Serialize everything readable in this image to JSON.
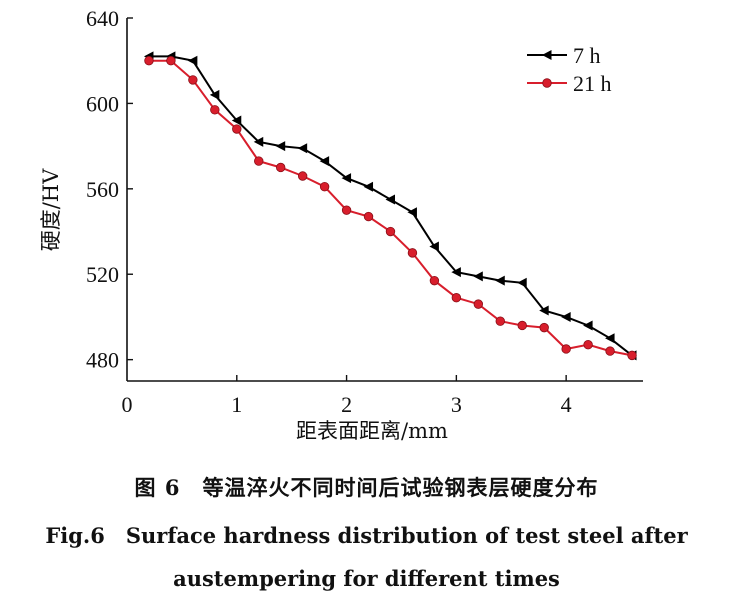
{
  "chart_data": {
    "type": "line",
    "xlabel": "距表面距离/mm",
    "ylabel": "硬度/HV",
    "xlim": [
      0,
      4.7
    ],
    "ylim": [
      470,
      640
    ],
    "xticks": [
      0,
      1,
      2,
      3,
      4
    ],
    "yticks": [
      480,
      520,
      560,
      600,
      640
    ],
    "legend_position": "top-right",
    "series": [
      {
        "name": "7 h",
        "color": "#000000",
        "marker": "left-triangle",
        "x": [
          0.2,
          0.4,
          0.6,
          0.8,
          1.0,
          1.2,
          1.4,
          1.6,
          1.8,
          2.0,
          2.2,
          2.4,
          2.6,
          2.8,
          3.0,
          3.2,
          3.4,
          3.6,
          3.8,
          4.0,
          4.2,
          4.4,
          4.6
        ],
        "values": [
          622,
          622,
          620,
          604,
          592,
          582,
          580,
          579,
          573,
          565,
          561,
          555,
          549,
          533,
          521,
          519,
          517,
          516,
          503,
          500,
          496,
          490,
          482
        ]
      },
      {
        "name": "21 h",
        "color": "#d81e2c",
        "marker": "circle",
        "x": [
          0.2,
          0.4,
          0.6,
          0.8,
          1.0,
          1.2,
          1.4,
          1.6,
          1.8,
          2.0,
          2.2,
          2.4,
          2.6,
          2.8,
          3.0,
          3.2,
          3.4,
          3.6,
          3.8,
          4.0,
          4.2,
          4.4,
          4.6
        ],
        "values": [
          620,
          620,
          611,
          597,
          588,
          573,
          570,
          566,
          561,
          550,
          547,
          540,
          530,
          517,
          509,
          506,
          498,
          496,
          495,
          485,
          487,
          484,
          482
        ]
      }
    ]
  },
  "caption": {
    "chinese": "图 6　等温淬火不同时间后试验钢表层硬度分布",
    "english_line1": "Fig.6　Surface hardness distribution of test steel after",
    "english_line2": "austempering for different times"
  }
}
